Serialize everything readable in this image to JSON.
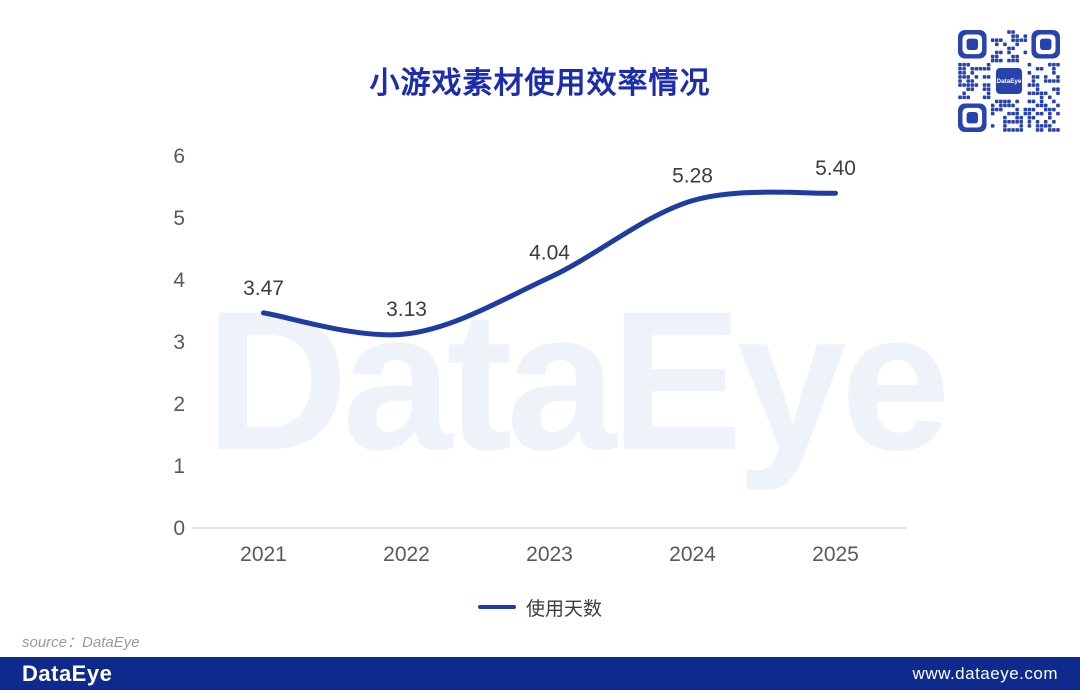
{
  "header": {
    "title": "小游戏素材使用效率情况"
  },
  "chart_data": {
    "type": "line",
    "title": "小游戏素材使用效率情况",
    "categories": [
      "2021",
      "2022",
      "2023",
      "2024",
      "2025"
    ],
    "series": [
      {
        "name": "使用天数",
        "values": [
          3.47,
          3.13,
          4.04,
          5.28,
          5.4
        ],
        "color": "#1f3ca0"
      }
    ],
    "data_labels": [
      "3.47",
      "3.13",
      "4.04",
      "5.28",
      "5.40"
    ],
    "xlabel": "",
    "ylabel": "",
    "ylim": [
      0,
      6
    ],
    "y_ticks": [
      "0",
      "1",
      "2",
      "3",
      "4",
      "5",
      "6"
    ],
    "grid": false,
    "smooth": true,
    "legend_position": "bottom",
    "axis_line_color": "#d9d9d9",
    "tick_color": "#595959",
    "label_color": "#3d3d3d"
  },
  "watermark": {
    "text": "DataEye",
    "color": "#edf3f9"
  },
  "qr": {
    "center_label": "DataEye",
    "color": "#2843ac"
  },
  "footer_note": {
    "text": "source：DataEye"
  },
  "footer": {
    "logo": "DataEye",
    "url": "www.dataeye.com",
    "bar_color": "#0d2a8c"
  },
  "colors": {
    "title": "#1c2dac",
    "line": "#1f3ca0",
    "background": "#ffffff"
  }
}
